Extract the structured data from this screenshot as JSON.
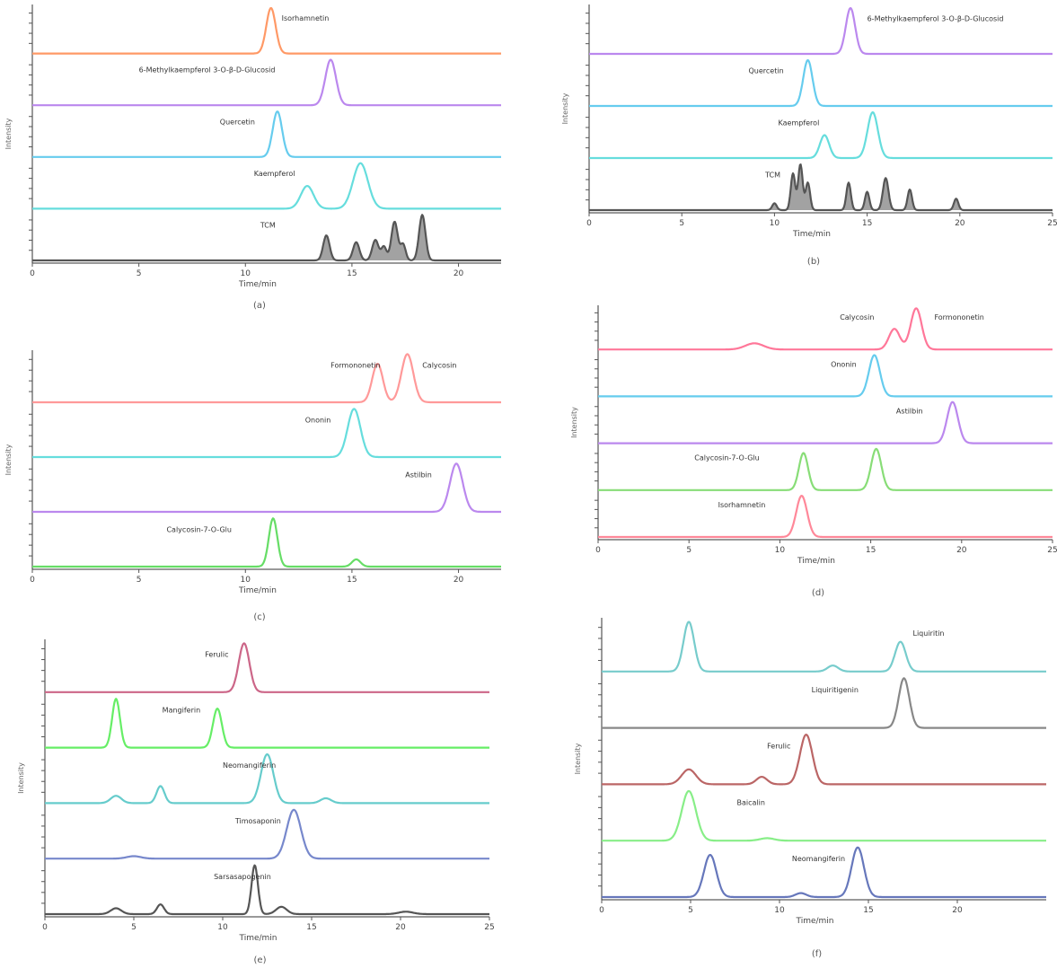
{
  "chart_data": [
    {
      "type": "line",
      "subplot_label": "(a)",
      "xlim": [
        0,
        22
      ],
      "x_ticks": [
        0,
        5,
        10,
        15,
        20
      ],
      "xlabel": "Time/min",
      "ylabel": "Intensity",
      "series": [
        {
          "color": "#ff9966",
          "peaks": [
            {
              "x": 11.2,
              "h": 1.0,
              "w": 0.22
            }
          ],
          "annotation": {
            "text": "Isorhamnetin",
            "x": 11.7
          }
        },
        {
          "color": "#bb88ee",
          "peaks": [
            {
              "x": 14.0,
              "h": 1.0,
              "w": 0.25
            }
          ],
          "annotation": {
            "text": "6-Methylkaempferol 3-O-β-D-Glucosid",
            "x": 5.0
          }
        },
        {
          "color": "#66ccee",
          "peaks": [
            {
              "x": 11.5,
              "h": 1.0,
              "w": 0.22
            }
          ],
          "annotation": {
            "text": "Quercetin",
            "x": 8.8
          }
        },
        {
          "color": "#66dddd",
          "peaks": [
            {
              "x": 12.9,
              "h": 0.5,
              "w": 0.3
            },
            {
              "x": 15.4,
              "h": 1.0,
              "w": 0.35
            }
          ],
          "annotation": {
            "text": "Kaempferol",
            "x": 10.4
          }
        },
        {
          "color": "#555555",
          "filled": true,
          "peaks": [
            {
              "x": 13.8,
              "h": 0.55,
              "w": 0.15
            },
            {
              "x": 15.2,
              "h": 0.4,
              "w": 0.15
            },
            {
              "x": 16.1,
              "h": 0.45,
              "w": 0.15
            },
            {
              "x": 17.0,
              "h": 0.85,
              "w": 0.15
            },
            {
              "x": 17.4,
              "h": 0.35,
              "w": 0.12
            },
            {
              "x": 18.3,
              "h": 1.0,
              "w": 0.15
            },
            {
              "x": 16.5,
              "h": 0.3,
              "w": 0.12
            }
          ],
          "annotation": {
            "text": "TCM",
            "x": 10.7
          }
        }
      ]
    },
    {
      "type": "line",
      "subplot_label": "(b)",
      "xlim": [
        0,
        25
      ],
      "x_ticks": [
        0,
        5,
        10,
        15,
        20,
        25
      ],
      "xlabel": "Time/min",
      "ylabel": "Intensity",
      "series": [
        {
          "color": "#bb88ee",
          "peaks": [
            {
              "x": 14.1,
              "h": 1.0,
              "w": 0.25
            }
          ],
          "annotation": {
            "text": "6-Methylkaempferol 3-O-β-D-Glucosid",
            "x": 15.0
          }
        },
        {
          "color": "#66ccee",
          "peaks": [
            {
              "x": 11.8,
              "h": 1.0,
              "w": 0.25
            }
          ],
          "annotation": {
            "text": "Quercetin",
            "x": 8.6
          }
        },
        {
          "color": "#66dddd",
          "peaks": [
            {
              "x": 12.7,
              "h": 0.5,
              "w": 0.25
            },
            {
              "x": 15.3,
              "h": 1.0,
              "w": 0.28
            }
          ],
          "annotation": {
            "text": "Kaempferol",
            "x": 10.2
          }
        },
        {
          "color": "#555555",
          "filled": true,
          "peaks": [
            {
              "x": 11.0,
              "h": 0.8,
              "w": 0.12
            },
            {
              "x": 11.4,
              "h": 1.0,
              "w": 0.12
            },
            {
              "x": 11.8,
              "h": 0.6,
              "w": 0.12
            },
            {
              "x": 14.0,
              "h": 0.6,
              "w": 0.12
            },
            {
              "x": 15.0,
              "h": 0.4,
              "w": 0.12
            },
            {
              "x": 16.0,
              "h": 0.7,
              "w": 0.15
            },
            {
              "x": 17.3,
              "h": 0.45,
              "w": 0.12
            },
            {
              "x": 19.8,
              "h": 0.25,
              "w": 0.12
            },
            {
              "x": 10.0,
              "h": 0.15,
              "w": 0.12
            }
          ],
          "annotation": {
            "text": "TCM",
            "x": 9.5
          }
        }
      ]
    },
    {
      "type": "line",
      "subplot_label": "(c)",
      "xlim": [
        0,
        22
      ],
      "x_ticks": [
        0,
        5,
        10,
        15,
        20
      ],
      "xlabel": "Time/min",
      "ylabel": "Intensity",
      "series": [
        {
          "color": "#ff9999",
          "peaks": [
            {
              "x": 16.2,
              "h": 0.8,
              "w": 0.25
            },
            {
              "x": 17.6,
              "h": 1.0,
              "w": 0.28
            }
          ],
          "annotation": {
            "text": "Calycosin",
            "x": 18.3
          },
          "annotation2": {
            "text": "Formononetin",
            "x": 14.0
          }
        },
        {
          "color": "#66dddd",
          "peaks": [
            {
              "x": 15.1,
              "h": 1.0,
              "w": 0.3
            }
          ],
          "annotation": {
            "text": "Ononin",
            "x": 12.8
          }
        },
        {
          "color": "#bb88ee",
          "peaks": [
            {
              "x": 19.9,
              "h": 1.0,
              "w": 0.3
            }
          ],
          "annotation": {
            "text": "Astilbin",
            "x": 17.5
          }
        },
        {
          "color": "#66dd66",
          "peaks": [
            {
              "x": 11.3,
              "h": 1.0,
              "w": 0.2
            },
            {
              "x": 15.2,
              "h": 0.15,
              "w": 0.2
            }
          ],
          "annotation": {
            "text": "Calycosin-7-O-Glu",
            "x": 6.3
          }
        }
      ]
    },
    {
      "type": "line",
      "subplot_label": "(d)",
      "xlim": [
        0,
        25
      ],
      "x_ticks": [
        0,
        5,
        10,
        15,
        20,
        25
      ],
      "xlabel": "Time/min",
      "ylabel": "Intensity",
      "series": [
        {
          "color": "#ff7799",
          "peaks": [
            {
              "x": 8.6,
              "h": 0.15,
              "w": 0.5
            },
            {
              "x": 16.3,
              "h": 0.5,
              "w": 0.3
            },
            {
              "x": 17.5,
              "h": 1.0,
              "w": 0.3
            }
          ],
          "annotation": {
            "text": "Calycosin",
            "x": 13.3
          },
          "annotation2": {
            "text": "Formononetin",
            "x": 18.5
          }
        },
        {
          "color": "#66ccee",
          "peaks": [
            {
              "x": 15.2,
              "h": 1.0,
              "w": 0.3
            }
          ],
          "annotation": {
            "text": "Ononin",
            "x": 12.8
          }
        },
        {
          "color": "#bb88ee",
          "peaks": [
            {
              "x": 19.5,
              "h": 1.0,
              "w": 0.3
            }
          ],
          "annotation": {
            "text": "Astilbin",
            "x": 16.4
          }
        },
        {
          "color": "#88dd77",
          "peaks": [
            {
              "x": 11.3,
              "h": 0.9,
              "w": 0.25
            },
            {
              "x": 15.3,
              "h": 1.0,
              "w": 0.28
            }
          ],
          "annotation": {
            "text": "Calycosin-7-O-Glu",
            "x": 5.3
          }
        },
        {
          "color": "#ff8899",
          "peaks": [
            {
              "x": 11.2,
              "h": 1.0,
              "w": 0.3
            }
          ],
          "annotation": {
            "text": "Isorhamnetin",
            "x": 6.6
          }
        }
      ]
    },
    {
      "type": "line",
      "subplot_label": "(e)",
      "xlim": [
        0,
        25
      ],
      "x_ticks": [
        0,
        5,
        10,
        15,
        20,
        25
      ],
      "xlabel": "Time/min",
      "ylabel": "Intensity",
      "series": [
        {
          "color": "#cc6688",
          "peaks": [
            {
              "x": 11.2,
              "h": 1.0,
              "w": 0.3
            }
          ],
          "annotation": {
            "text": "Ferulic",
            "x": 9.0
          }
        },
        {
          "color": "#66ee66",
          "peaks": [
            {
              "x": 4.0,
              "h": 1.0,
              "w": 0.22
            },
            {
              "x": 9.7,
              "h": 0.8,
              "w": 0.25
            }
          ],
          "annotation": {
            "text": "Mangiferin",
            "x": 6.6
          }
        },
        {
          "color": "#66cccc",
          "peaks": [
            {
              "x": 4.0,
              "h": 0.15,
              "w": 0.3
            },
            {
              "x": 6.5,
              "h": 0.35,
              "w": 0.22
            },
            {
              "x": 12.5,
              "h": 1.0,
              "w": 0.35
            },
            {
              "x": 15.8,
              "h": 0.1,
              "w": 0.3
            }
          ],
          "annotation": {
            "text": "Neomangiferin",
            "x": 10.0
          }
        },
        {
          "color": "#7788cc",
          "peaks": [
            {
              "x": 5.0,
              "h": 0.05,
              "w": 0.4
            },
            {
              "x": 14.0,
              "h": 1.0,
              "w": 0.4
            }
          ],
          "annotation": {
            "text": "Timosaponin",
            "x": 10.7
          }
        },
        {
          "color": "#555555",
          "peaks": [
            {
              "x": 4.0,
              "h": 0.12,
              "w": 0.3
            },
            {
              "x": 6.5,
              "h": 0.2,
              "w": 0.2
            },
            {
              "x": 11.8,
              "h": 1.0,
              "w": 0.18
            },
            {
              "x": 13.3,
              "h": 0.15,
              "w": 0.3
            },
            {
              "x": 20.3,
              "h": 0.05,
              "w": 0.4
            }
          ],
          "annotation": {
            "text": "Sarsasapogenin",
            "x": 9.5
          }
        }
      ]
    },
    {
      "type": "line",
      "subplot_label": "(f)",
      "xlim": [
        0,
        25
      ],
      "x_ticks": [
        0,
        5,
        10,
        15,
        20
      ],
      "xlabel": "Time/min",
      "ylabel": "Intensity",
      "series": [
        {
          "color": "#77cccc",
          "peaks": [
            {
              "x": 4.9,
              "h": 1.0,
              "w": 0.3
            },
            {
              "x": 13.0,
              "h": 0.12,
              "w": 0.3
            },
            {
              "x": 16.8,
              "h": 0.6,
              "w": 0.3
            }
          ],
          "annotation": {
            "text": "Liquiritin",
            "x": 17.5
          }
        },
        {
          "color": "#888888",
          "peaks": [
            {
              "x": 17.0,
              "h": 1.0,
              "w": 0.3
            }
          ],
          "annotation": {
            "text": "Liquiritigenin",
            "x": 11.8
          }
        },
        {
          "color": "#bb6666",
          "peaks": [
            {
              "x": 4.9,
              "h": 0.3,
              "w": 0.4
            },
            {
              "x": 9.0,
              "h": 0.15,
              "w": 0.3
            },
            {
              "x": 11.5,
              "h": 1.0,
              "w": 0.35
            }
          ],
          "annotation": {
            "text": "Ferulic",
            "x": 9.3
          }
        },
        {
          "color": "#88ee88",
          "peaks": [
            {
              "x": 4.9,
              "h": 1.0,
              "w": 0.4
            },
            {
              "x": 9.3,
              "h": 0.05,
              "w": 0.4
            }
          ],
          "annotation": {
            "text": "Baicalin",
            "x": 7.6
          }
        },
        {
          "color": "#6677bb",
          "peaks": [
            {
              "x": 6.1,
              "h": 0.85,
              "w": 0.35
            },
            {
              "x": 11.2,
              "h": 0.08,
              "w": 0.3
            },
            {
              "x": 14.4,
              "h": 1.0,
              "w": 0.35
            }
          ],
          "annotation": {
            "text": "Neomangiferin",
            "x": 10.7
          }
        }
      ]
    }
  ]
}
